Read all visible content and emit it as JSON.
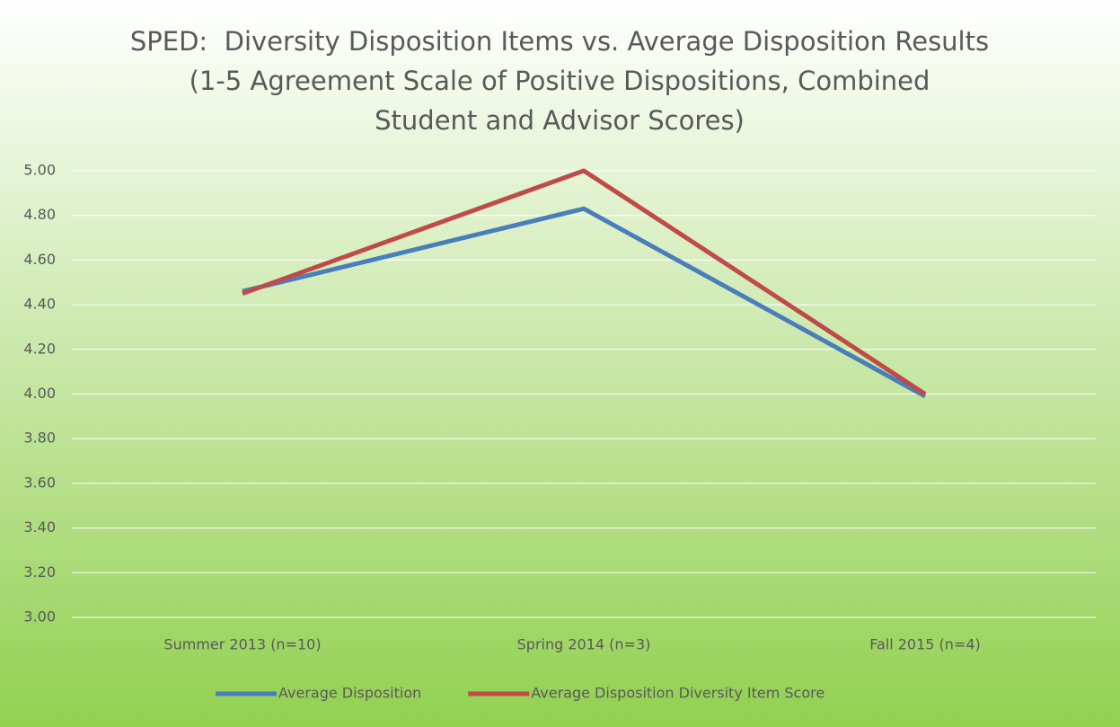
{
  "chart_data": {
    "type": "line",
    "title": [
      "SPED:  Diversity Disposition Items vs. Average Disposition Results",
      "(1-5 Agreement Scale of Positive Dispositions, Combined",
      "Student and Advisor Scores)"
    ],
    "categories": [
      "Summer 2013 (n=10)",
      "Spring 2014 (n=3)",
      "Fall 2015 (n=4)"
    ],
    "series": [
      {
        "name": "Average Disposition",
        "color": "#4a7ebb",
        "values": [
          4.46,
          4.83,
          3.99
        ]
      },
      {
        "name": "Average Disposition Diversity Item Score",
        "color": "#be4b48",
        "values": [
          4.45,
          5.0,
          4.0
        ]
      }
    ],
    "ylim": [
      3,
      5
    ],
    "yticks": [
      {
        "value": 3,
        "label": "3.00"
      },
      {
        "value": 3.2,
        "label": "3.20"
      },
      {
        "value": 3.4,
        "label": "3.40"
      },
      {
        "value": 3.6,
        "label": "3.60"
      },
      {
        "value": 3.8,
        "label": "3.80"
      },
      {
        "value": 4,
        "label": "4.00"
      },
      {
        "value": 4.2,
        "label": "4.20"
      },
      {
        "value": 4.4,
        "label": "4.40"
      },
      {
        "value": 4.6,
        "label": "4.60"
      },
      {
        "value": 4.8,
        "label": "4.80"
      },
      {
        "value": 5,
        "label": "5.00"
      }
    ],
    "grid": true,
    "legend": "bottom"
  }
}
